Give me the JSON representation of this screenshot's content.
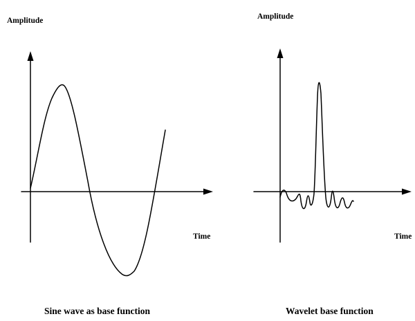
{
  "panels": [
    {
      "id": "sine",
      "y_axis_label": "Amplitude",
      "x_axis_label": "Time",
      "caption": "Sine wave as base function"
    },
    {
      "id": "wavelet",
      "y_axis_label": "Amplitude",
      "x_axis_label": "Time",
      "caption": "Wavelet base function"
    }
  ],
  "colors": {
    "background": "#ffffff",
    "ink": "#000000"
  }
}
